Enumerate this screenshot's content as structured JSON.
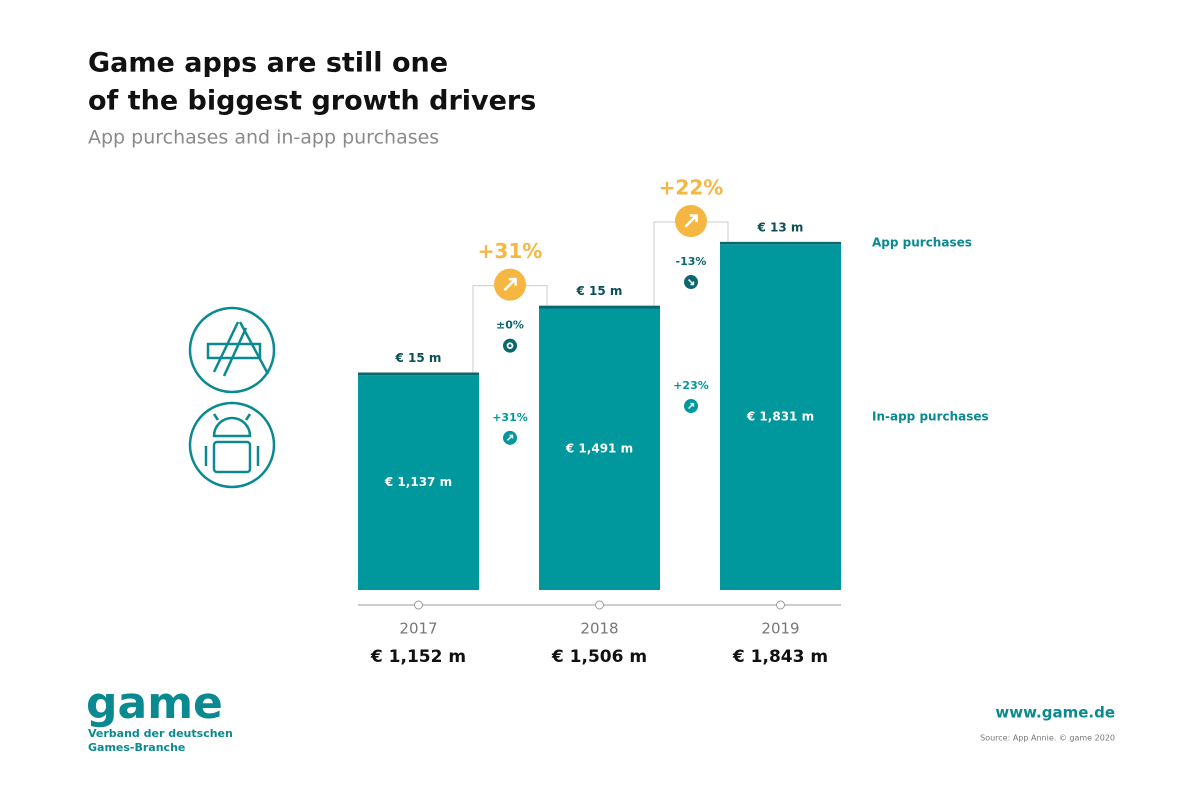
{
  "chart_data": {
    "type": "bar",
    "stacked": true,
    "title": [
      "Game apps are still one",
      "of the biggest growth drivers"
    ],
    "subtitle": "App purchases and in-app purchases",
    "categories": [
      "2017",
      "2018",
      "2019"
    ],
    "series": [
      {
        "name": "In-app purchases",
        "color": "#00979d",
        "values": [
          1137,
          1491,
          1831
        ],
        "value_labels": [
          "€ 1,137 m",
          "€ 1,491 m",
          "€ 1,831 m"
        ],
        "changes": [
          {
            "value": 31,
            "label": "+31%"
          },
          {
            "value": 23,
            "label": "+23%"
          }
        ]
      },
      {
        "name": "App purchases",
        "color": "#0b6670",
        "values": [
          15,
          15,
          13
        ],
        "value_labels": [
          "€ 15 m",
          "€ 15 m",
          "€ 13 m"
        ],
        "changes": [
          {
            "value": 0,
            "label": "±0%"
          },
          {
            "value": -13,
            "label": "-13%"
          }
        ]
      }
    ],
    "totals": {
      "values": [
        1152,
        1506,
        1843
      ],
      "value_labels": [
        "€ 1,152 m",
        "€ 1,506 m",
        "€ 1,843 m"
      ]
    },
    "growth": [
      {
        "value": 31,
        "label": "+31%"
      },
      {
        "value": 22,
        "label": "+22%"
      }
    ],
    "growth_color": "#f5b742"
  },
  "footer": {
    "logo": "game",
    "org": "Verband der deutschen Games-Branche",
    "url": "www.game.de",
    "source": "Source: App Annie. © game 2020"
  }
}
